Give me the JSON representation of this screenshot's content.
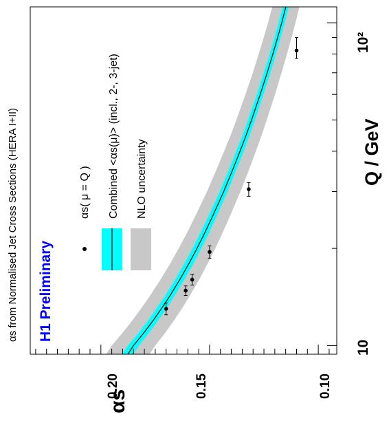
{
  "chart_data": {
    "type": "scatter",
    "title": "αs from Normalised Jet Cross Sections (HERA I+II)",
    "experiment_label": "H1 Preliminary",
    "xlabel": "Q / GeV",
    "ylabel": "αs",
    "xscale": "log",
    "xlim": [
      9.4,
      112
    ],
    "ylim": [
      0.0915,
      0.2325
    ],
    "orientation": "rotated-90-clockwise",
    "x_tick_labels": [
      "10",
      "10²"
    ],
    "y_tick_labels": [
      "0.20",
      "0.15",
      "0.10"
    ],
    "grid": false,
    "legend": {
      "placement": "top-left",
      "entries": [
        {
          "label": "αs( μ = Q )",
          "marker": "point"
        },
        {
          "label": "Combined <αs(μ)> (incl., 2-, 3-jet)",
          "marker": "line-with-band"
        },
        {
          "label": "NLO uncertainty",
          "marker": "band"
        }
      ]
    },
    "series": [
      {
        "name": "αs( μ = Q )",
        "type": "scatter",
        "points": [
          {
            "x": 13.0,
            "x_err": [
              0.55,
              0.55
            ],
            "y": 0.17
          },
          {
            "x": 14.8,
            "x_err": [
              0.5,
              0.5
            ],
            "y": 0.161
          },
          {
            "x": 16.0,
            "x_err": [
              0.6,
              0.6
            ],
            "y": 0.158
          },
          {
            "x": 19.5,
            "x_err": [
              0.85,
              0.85
            ],
            "y": 0.15
          },
          {
            "x": 30.5,
            "x_err": [
              1.5,
              1.5
            ],
            "y": 0.132
          },
          {
            "x": 82.0,
            "x_err": [
              4.5,
              8.0
            ],
            "y": 0.11
          }
        ]
      },
      {
        "name": "Combined <αs(μ)> (incl., 2-, 3-jet)",
        "type": "line",
        "x": [
          9.4,
          10,
          11,
          12,
          13,
          14,
          16,
          18,
          20,
          22,
          25,
          28,
          30,
          35,
          40,
          45,
          50,
          60,
          70,
          80,
          90,
          100,
          105,
          112
        ],
        "y": [
          0.1876,
          0.185,
          0.18,
          0.1758,
          0.1722,
          0.169,
          0.1637,
          0.1594,
          0.1558,
          0.1527,
          0.1488,
          0.1455,
          0.1435,
          0.1394,
          0.136,
          0.1331,
          0.1307,
          0.1267,
          0.1235,
          0.1209,
          0.1187,
          0.1168,
          0.116,
          0.1149
        ],
        "band_halfwidth": [
          0.0026,
          0.0025,
          0.0024,
          0.0023,
          0.0023,
          0.0022,
          0.0021,
          0.0021,
          0.002,
          0.002,
          0.0019,
          0.0018,
          0.0018,
          0.0017,
          0.0017,
          0.0016,
          0.0016,
          0.0015,
          0.0015,
          0.0014,
          0.0014,
          0.0014,
          0.0014,
          0.0013
        ],
        "color": "#00ffff"
      },
      {
        "name": "NLO uncertainty",
        "type": "band",
        "x": [
          9.4,
          10,
          11,
          12,
          13,
          14,
          16,
          18,
          20,
          22,
          25,
          28,
          30,
          35,
          40,
          45,
          50,
          60,
          70,
          80,
          90,
          100,
          105,
          112
        ],
        "y_low": [
          0.1776,
          0.175,
          0.1702,
          0.1662,
          0.1628,
          0.1598,
          0.1548,
          0.1508,
          0.1474,
          0.1445,
          0.1408,
          0.1377,
          0.1358,
          0.1319,
          0.1287,
          0.126,
          0.1237,
          0.1199,
          0.1169,
          0.1144,
          0.1123,
          0.1105,
          0.1097,
          0.1087
        ],
        "y_high": [
          0.1976,
          0.195,
          0.1898,
          0.1854,
          0.1816,
          0.1782,
          0.1726,
          0.168,
          0.1642,
          0.1609,
          0.1568,
          0.1533,
          0.1512,
          0.1469,
          0.1433,
          0.1402,
          0.1377,
          0.1335,
          0.1301,
          0.1274,
          0.1251,
          0.1231,
          0.1223,
          0.1211
        ],
        "color": "#c8c8c8"
      }
    ],
    "colors": {
      "band": "#c8c8c8",
      "combined_band": "#00ffff",
      "line": "#000000",
      "points": "#000000",
      "experiment_label": "#0000ff"
    }
  }
}
